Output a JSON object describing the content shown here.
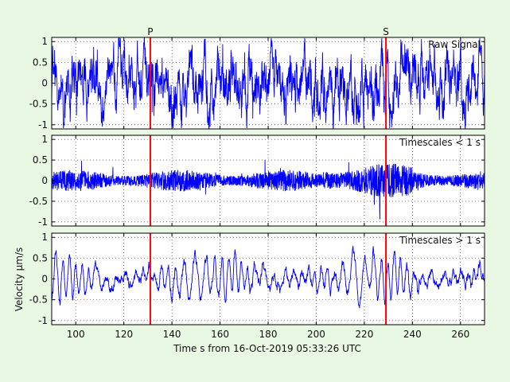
{
  "figure": {
    "background": "#E9F8E3",
    "xlabel": "Time s from 16-Oct-2019 05:33:26 UTC",
    "ylabel": "Velocity µm/s"
  },
  "chart_data": [
    {
      "type": "line",
      "title": "Raw Signal",
      "xlim": [
        90,
        270
      ],
      "ylim": [
        -1.1,
        1.1
      ],
      "xticks": [
        100,
        120,
        140,
        160,
        180,
        200,
        220,
        240,
        260
      ],
      "yticks": [
        1,
        0.5,
        0,
        -0.5,
        -1
      ],
      "grid": true,
      "series": [
        {
          "color": "#0000FF",
          "x_start": 90,
          "x_end": 270,
          "style": "broadband noise, amplitude about ±1, many spikes"
        }
      ],
      "markers": [
        {
          "label": "P",
          "x": 131,
          "color": "#FF0000"
        },
        {
          "label": "S",
          "x": 229,
          "color": "#FF0000"
        }
      ]
    },
    {
      "type": "line",
      "title": "Timescales < 1 s",
      "xlim": [
        90,
        270
      ],
      "ylim": [
        -1.1,
        1.1
      ],
      "xticks": [
        100,
        120,
        140,
        160,
        180,
        200,
        220,
        240,
        260
      ],
      "yticks": [
        1,
        0.5,
        0,
        -0.5,
        -1
      ],
      "grid": true,
      "series": [
        {
          "color": "#0000FF",
          "x_start": 90,
          "x_end": 270,
          "style": "high-frequency noise, amplitude about ±0.3, bursts to ±0.5"
        }
      ],
      "markers": [
        {
          "label": "P",
          "x": 131,
          "color": "#FF0000"
        },
        {
          "label": "S",
          "x": 229,
          "color": "#FF0000"
        }
      ]
    },
    {
      "type": "line",
      "title": "Timescales > 1 s",
      "xlim": [
        90,
        270
      ],
      "ylim": [
        -1.1,
        1.1
      ],
      "xticks": [
        100,
        120,
        140,
        160,
        180,
        200,
        220,
        240,
        260
      ],
      "yticks": [
        1,
        0.5,
        0,
        -0.5,
        -1
      ],
      "grid": true,
      "series": [
        {
          "color": "#0000FF",
          "x_start": 90,
          "x_end": 270,
          "style": "low-frequency oscillation, amplitude about ±0.7"
        }
      ],
      "markers": [
        {
          "label": "P",
          "x": 131,
          "color": "#FF0000"
        },
        {
          "label": "S",
          "x": 229,
          "color": "#FF0000"
        }
      ]
    }
  ]
}
